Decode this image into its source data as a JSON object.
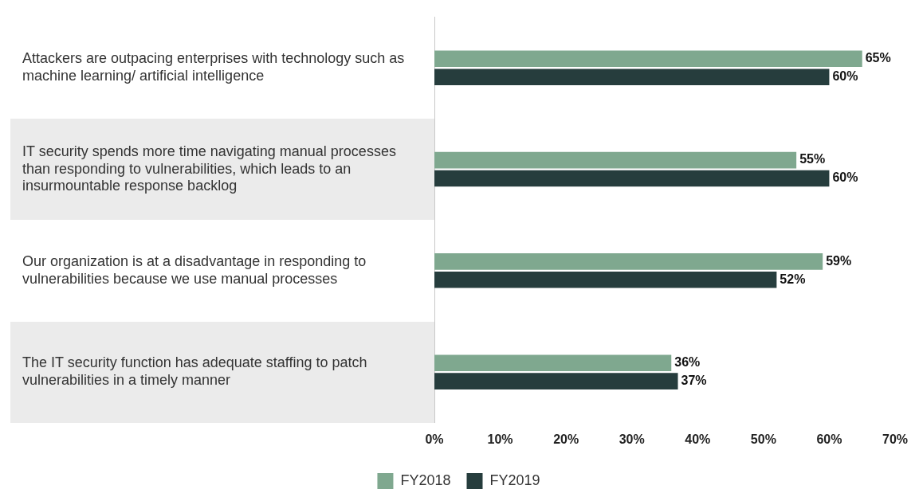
{
  "chart_data": {
    "type": "bar",
    "orientation": "horizontal",
    "categories": [
      "Attackers are outpacing enterprises with technology such as machine learning/ artificial intelligence",
      "IT security spends more time navigating manual processes than responding to vulnerabilities, which leads to an insurmountable response backlog",
      "Our organization is at a disadvantage in responding to vulnerabilities because we use manual processes",
      "The IT security function has adequate staffing to patch vulnerabilities in a timely manner"
    ],
    "series": [
      {
        "name": "FY2018",
        "color": "#7fa88f",
        "values": [
          65,
          55,
          59,
          36
        ],
        "value_labels": [
          "65%",
          "55%",
          "59%",
          "36%"
        ]
      },
      {
        "name": "FY2019",
        "color": "#263d3d",
        "values": [
          60,
          60,
          52,
          37
        ],
        "value_labels": [
          "60%",
          "60%",
          "52%",
          "37%"
        ]
      }
    ],
    "xlim": [
      0,
      70
    ],
    "xticks": [
      {
        "value": 0,
        "label": "0%"
      },
      {
        "value": 10,
        "label": "10%"
      },
      {
        "value": 20,
        "label": "20%"
      },
      {
        "value": 30,
        "label": "30%"
      },
      {
        "value": 40,
        "label": "40%"
      },
      {
        "value": 50,
        "label": "50%"
      },
      {
        "value": 60,
        "label": "60%"
      },
      {
        "value": 70,
        "label": "70%"
      }
    ],
    "grid": false,
    "legend": "bottom"
  }
}
